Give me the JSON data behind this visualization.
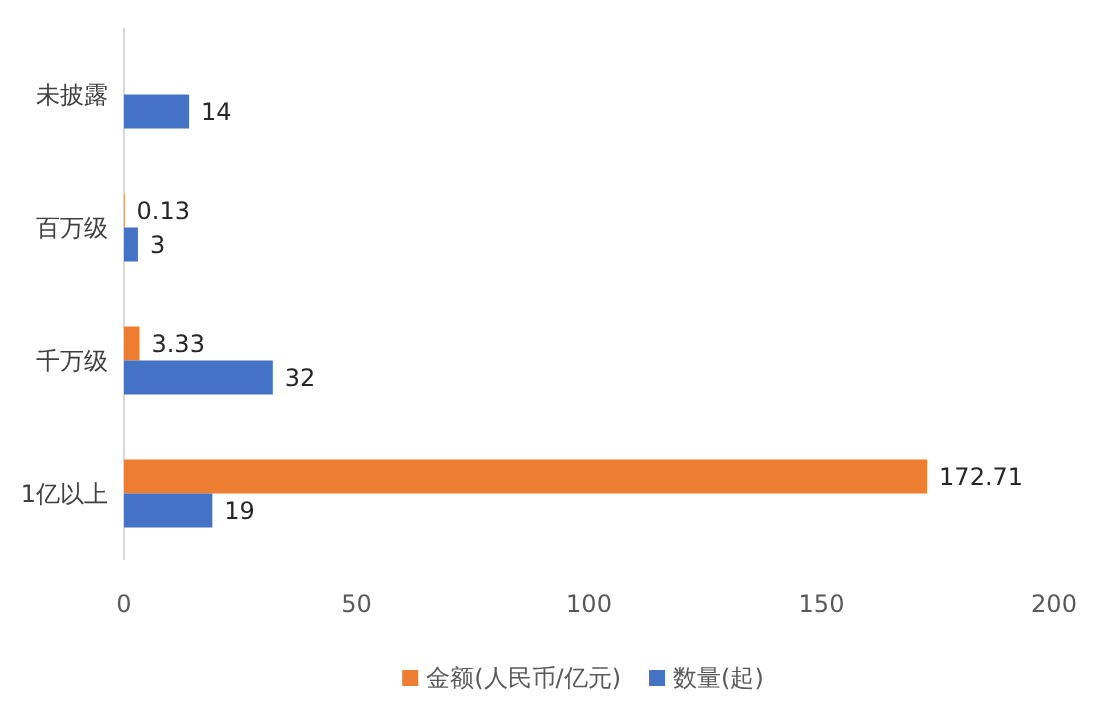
{
  "chart_data": {
    "type": "bar",
    "orientation": "horizontal",
    "categories": [
      "未披露",
      "百万级",
      "千万级",
      "1亿以上"
    ],
    "series": [
      {
        "name": "金额(人民币/亿元)",
        "color": "#ed7d31",
        "values": [
          null,
          0.13,
          3.33,
          172.71
        ]
      },
      {
        "name": "数量(起)",
        "color": "#4472c4",
        "values": [
          14,
          3,
          32,
          19
        ]
      }
    ],
    "xlim": [
      0,
      200
    ],
    "xticks": [
      0,
      50,
      100,
      150,
      200
    ],
    "data_labels": true,
    "legend": "bottom",
    "grid": false
  }
}
